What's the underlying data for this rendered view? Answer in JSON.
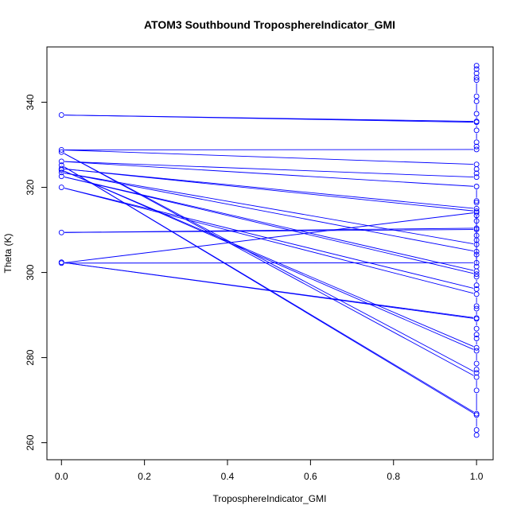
{
  "chart_data": {
    "type": "line",
    "title": "ATOM3 Southbound TroposphereIndicator_GMI",
    "xlabel": "TroposphereIndicator_GMI",
    "ylabel": "Theta (K)",
    "xlim": [
      -0.035,
      1.04
    ],
    "ylim": [
      256,
      353
    ],
    "xticks": [
      "0.0",
      "0.2",
      "0.4",
      "0.6",
      "0.8",
      "1.0"
    ],
    "xtick_values": [
      0,
      0.2,
      0.4,
      0.6,
      0.8,
      1.0
    ],
    "yticks": [
      "260",
      "280",
      "300",
      "320",
      "340"
    ],
    "ytick_values": [
      260,
      280,
      300,
      320,
      340
    ],
    "grid": false,
    "series_color": "#0000ff",
    "points": [
      [
        1,
        348.6
      ],
      [
        1,
        347.8
      ],
      [
        1,
        346.8
      ],
      [
        1,
        345.8
      ],
      [
        1,
        345.2
      ],
      [
        1,
        341.4
      ],
      [
        1,
        340.2
      ],
      [
        1,
        337.3
      ],
      [
        1,
        335.5
      ],
      [
        0,
        337.0
      ],
      [
        1,
        335.3
      ],
      [
        1,
        333.4
      ],
      [
        1,
        330.6
      ],
      [
        1,
        329.6
      ],
      [
        1,
        328.9
      ],
      [
        0,
        328.8
      ],
      [
        1,
        325.4
      ],
      [
        1,
        324.3
      ],
      [
        1,
        323.3
      ],
      [
        1,
        322.4
      ],
      [
        0,
        326.1
      ],
      [
        1,
        320.2
      ],
      [
        1,
        316.8
      ],
      [
        1,
        316.4
      ],
      [
        1,
        315.0
      ],
      [
        0,
        324.4
      ],
      [
        1,
        314.4
      ],
      [
        1,
        313.4
      ],
      [
        1,
        312.1
      ],
      [
        1,
        310.4
      ],
      [
        0,
        309.4
      ],
      [
        1,
        310.1
      ],
      [
        1,
        308.7
      ],
      [
        1,
        307.6
      ],
      [
        1,
        306.6
      ],
      [
        0,
        323.5
      ],
      [
        1,
        304.9
      ],
      [
        1,
        304.2
      ],
      [
        1,
        302.3
      ],
      [
        0,
        302.2
      ],
      [
        1,
        314.1
      ],
      [
        1,
        301.4
      ],
      [
        1,
        300.3
      ],
      [
        0,
        322.6
      ],
      [
        1,
        299.6
      ],
      [
        1,
        299.0
      ],
      [
        1,
        297.0
      ],
      [
        1,
        296.1
      ],
      [
        0,
        320.0
      ],
      [
        1,
        294.9
      ],
      [
        1,
        292.1
      ],
      [
        1,
        291.5
      ],
      [
        1,
        289.3
      ],
      [
        0,
        302.4
      ],
      [
        1,
        289.1
      ],
      [
        1,
        286.8
      ],
      [
        1,
        285.4
      ],
      [
        1,
        284.5
      ],
      [
        1,
        282.3
      ],
      [
        0,
        324.1
      ],
      [
        1,
        281.6
      ],
      [
        1,
        278.6
      ],
      [
        1,
        277.2
      ],
      [
        1,
        276.4
      ],
      [
        0,
        328.3
      ],
      [
        1,
        275.4
      ],
      [
        1,
        272.3
      ],
      [
        1,
        266.8
      ],
      [
        0,
        325.2
      ],
      [
        1,
        266.5
      ],
      [
        1,
        263.0
      ],
      [
        1,
        261.8
      ]
    ]
  }
}
